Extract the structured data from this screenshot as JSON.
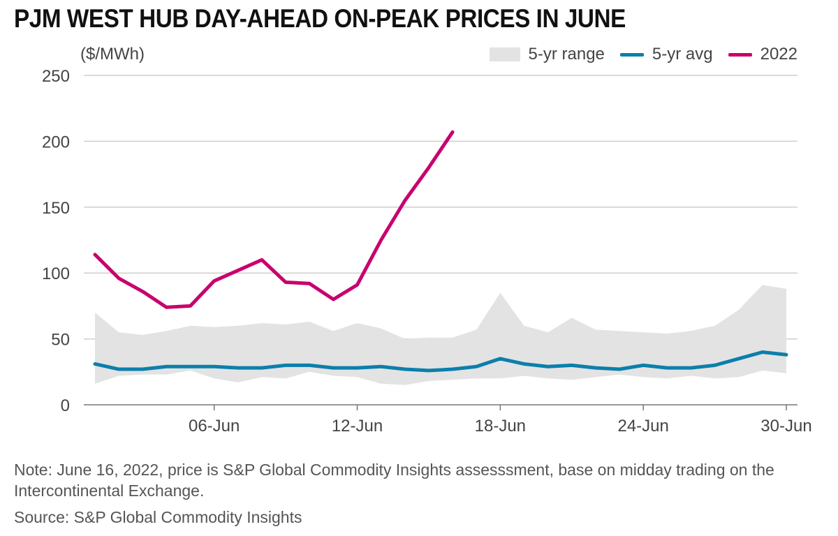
{
  "title": "PJM WEST HUB DAY-AHEAD ON-PEAK PRICES IN JUNE",
  "note": "Note: June 16, 2022, price is S&P Global Commodity Insights assesssment, base on midday trading on the Intercontinental Exchange.",
  "source": "Source: S&P Global Commodity Insights",
  "colors": {
    "range": "#e3e3e4",
    "avg": "#0b7fab",
    "y2022": "#c8006e",
    "grid": "#cfcfcf",
    "axis": "#777777",
    "text": "#444444"
  },
  "chart_data": {
    "type": "line",
    "title": "PJM WEST HUB DAY-AHEAD ON-PEAK PRICES IN JUNE",
    "ylabel": "($/MWh)",
    "xlabel": "",
    "xlim": [
      1,
      30
    ],
    "ylim": [
      0,
      250
    ],
    "grid": true,
    "legend_position": "top-right",
    "y_ticks": [
      0,
      50,
      100,
      150,
      200,
      250
    ],
    "x_ticks": [
      {
        "day": 6,
        "label": "06-Jun"
      },
      {
        "day": 12,
        "label": "12-Jun"
      },
      {
        "day": 18,
        "label": "18-Jun"
      },
      {
        "day": 24,
        "label": "24-Jun"
      },
      {
        "day": 30,
        "label": "30-Jun"
      }
    ],
    "legend": [
      "5-yr range",
      "5-yr avg",
      "2022"
    ],
    "range": {
      "name": "5-yr range",
      "x": [
        1,
        2,
        3,
        4,
        5,
        6,
        7,
        8,
        9,
        10,
        11,
        12,
        13,
        14,
        15,
        16,
        17,
        18,
        19,
        20,
        21,
        22,
        23,
        24,
        25,
        26,
        27,
        28,
        29,
        30
      ],
      "low": [
        16,
        22,
        23,
        23,
        26,
        20,
        17,
        21,
        20,
        25,
        22,
        21,
        16,
        15,
        18,
        19,
        20,
        20,
        22,
        20,
        19,
        21,
        23,
        21,
        20,
        22,
        20,
        21,
        26,
        24
      ],
      "high": [
        70,
        55,
        53,
        56,
        60,
        59,
        60,
        62,
        61,
        63,
        56,
        62,
        58,
        50,
        51,
        51,
        57,
        85,
        60,
        55,
        66,
        57,
        56,
        55,
        54,
        56,
        60,
        72,
        91,
        88
      ]
    },
    "series": [
      {
        "name": "5-yr avg",
        "x": [
          1,
          2,
          3,
          4,
          5,
          6,
          7,
          8,
          9,
          10,
          11,
          12,
          13,
          14,
          15,
          16,
          17,
          18,
          19,
          20,
          21,
          22,
          23,
          24,
          25,
          26,
          27,
          28,
          29,
          30
        ],
        "values": [
          31,
          27,
          27,
          29,
          29,
          29,
          28,
          28,
          30,
          30,
          28,
          28,
          29,
          27,
          26,
          27,
          29,
          35,
          31,
          29,
          30,
          28,
          27,
          30,
          28,
          28,
          30,
          35,
          40,
          38
        ]
      },
      {
        "name": "2022",
        "x": [
          1,
          2,
          3,
          4,
          5,
          6,
          7,
          8,
          9,
          10,
          11,
          12,
          13,
          14,
          15,
          16
        ],
        "values": [
          114,
          96,
          86,
          74,
          75,
          94,
          102,
          110,
          93,
          92,
          80,
          91,
          125,
          155,
          180,
          207
        ]
      }
    ]
  }
}
